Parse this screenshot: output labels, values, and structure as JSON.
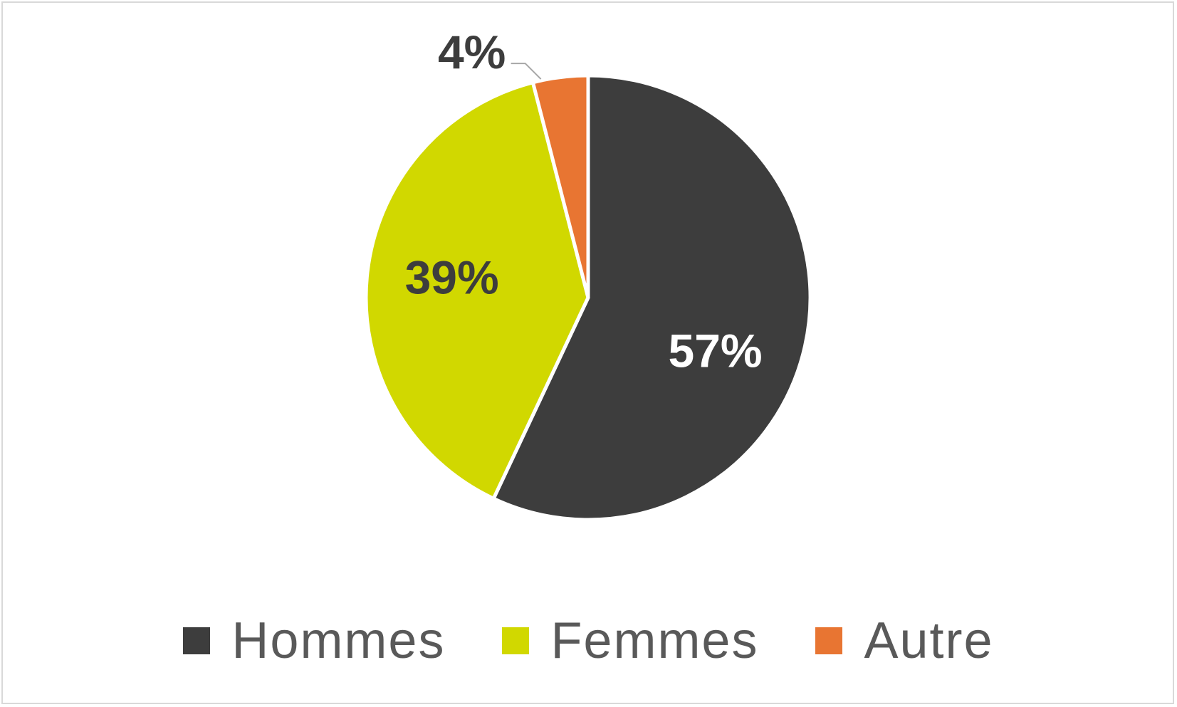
{
  "chart_data": {
    "type": "pie",
    "categories": [
      "Hommes",
      "Femmes",
      "Autre"
    ],
    "values": [
      57,
      39,
      4
    ],
    "data_labels": [
      "57%",
      "39%",
      "4%"
    ],
    "colors": [
      "#3d3d3d",
      "#d1d800",
      "#e87532"
    ],
    "label_colors": [
      "#ffffff",
      "#3d3d3d",
      "#3d3d3d"
    ],
    "legend_position": "bottom",
    "start_angle": "12 o'clock, clockwise"
  }
}
